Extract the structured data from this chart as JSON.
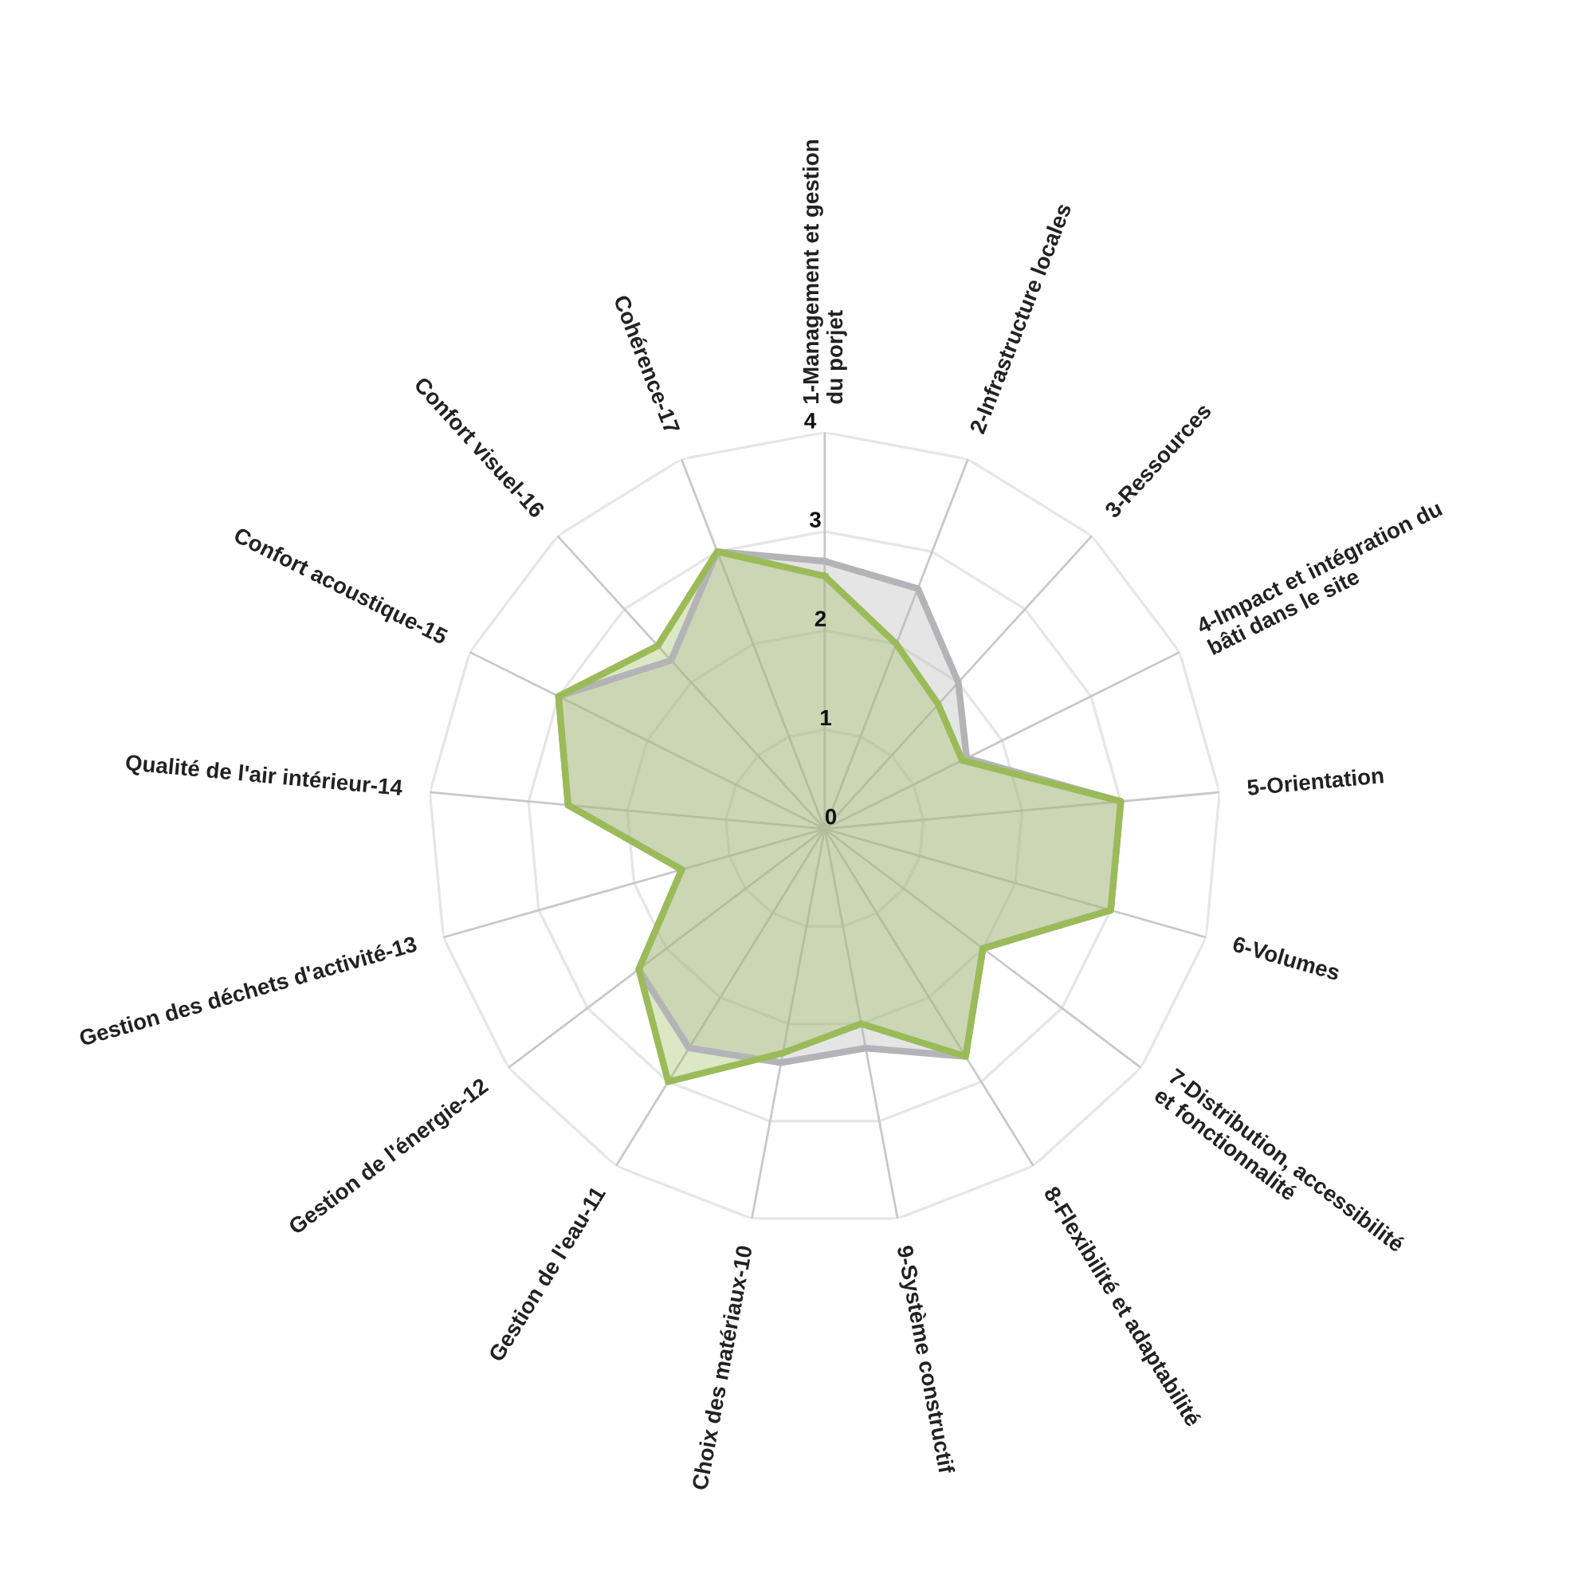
{
  "chart_data": {
    "type": "radar",
    "categories": [
      "1-Management et gestion\ndu porjet",
      "2-Infrastructure locales",
      "3-Ressources",
      "4-Impact et intégration du\nbâti dans le site",
      "5-Orientation",
      "6-Volumes",
      "7-Distribution, accessibilité\net fonctionnalité",
      "8-Flexibilité et adaptabilité",
      "9-Système constructif",
      "Choix des matériaux-10",
      "Gestion de l'eau-11",
      "Gestion de l'énergie-12",
      "Gestion des déchets d'activité-13",
      "Qualité de l'air intérieur-14",
      "Confort acoustique-15",
      "Confort visuel-16",
      "Cohérence-17"
    ],
    "series": [
      {
        "color": "#b4b4b8",
        "values": [
          2.7,
          2.6,
          2.0,
          1.6,
          3.0,
          3.0,
          2.0,
          2.7,
          2.25,
          2.4,
          2.6,
          2.35,
          1.5,
          2.6,
          3.0,
          2.3,
          3.0
        ]
      },
      {
        "color": "#9bbb59",
        "values": [
          2.55,
          2.0,
          1.7,
          1.55,
          3.0,
          3.0,
          2.0,
          2.7,
          2.0,
          2.3,
          3.0,
          2.35,
          1.5,
          2.6,
          3.0,
          2.5,
          3.0
        ]
      }
    ],
    "ylim": [
      0,
      4
    ],
    "yticks": [
      0,
      1,
      2,
      3,
      4
    ],
    "grid": true
  }
}
